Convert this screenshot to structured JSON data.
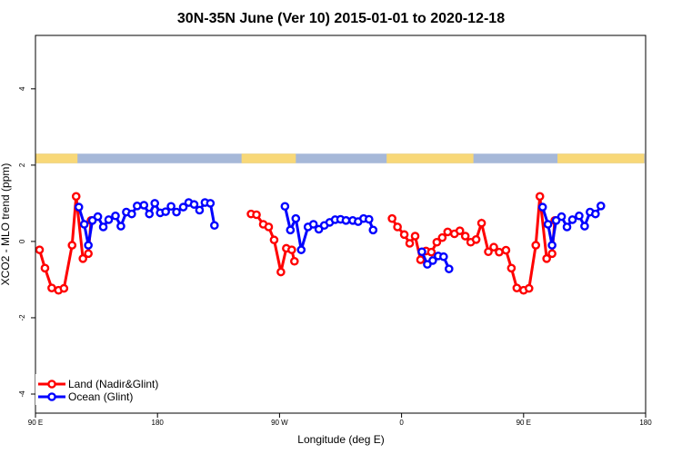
{
  "chart_data": {
    "type": "line",
    "title": "30N-35N June (Ver 10)   2015-01-01 to 2020-12-18",
    "xlabel": "Longitude (deg E)",
    "ylabel": "XCO2 - MLO trend (ppm)",
    "xlim": [
      90,
      540
    ],
    "ylim": [
      -4.5,
      5.4
    ],
    "x_ticks": [
      {
        "value": 90,
        "label": "90 E"
      },
      {
        "value": 180,
        "label": "180"
      },
      {
        "value": 270,
        "label": "90 W"
      },
      {
        "value": 360,
        "label": "0"
      },
      {
        "value": 450,
        "label": "90 E"
      },
      {
        "value": 540,
        "label": "180"
      }
    ],
    "y_ticks": [
      {
        "value": -4,
        "label": "-4"
      },
      {
        "value": -2,
        "label": "-2"
      },
      {
        "value": 0,
        "label": "0"
      },
      {
        "value": 2,
        "label": "2"
      },
      {
        "value": 4,
        "label": "4"
      }
    ],
    "legend_position": "bottom-left",
    "land_sea_strip": {
      "y_range": [
        2.05,
        2.3
      ],
      "ocean_color": "#a6b8d8",
      "land_color": "#f8d878",
      "land_segments": [
        [
          90,
          121
        ],
        [
          242,
          282
        ],
        [
          349,
          413
        ],
        [
          475,
          539
        ]
      ]
    },
    "series": [
      {
        "name": "Land (Nadir&Glint)",
        "color": "#ff0000",
        "points": [
          [
            93,
            -0.22
          ],
          [
            97,
            -0.7
          ],
          [
            102,
            -1.22
          ],
          [
            107,
            -1.28
          ],
          [
            111,
            -1.23
          ],
          [
            117,
            -0.1
          ],
          [
            120,
            1.18
          ],
          [
            125,
            -0.45
          ],
          [
            129,
            -0.32
          ],
          [
            131,
            0.55
          ],
          [
            249,
            0.72
          ],
          [
            253,
            0.7
          ],
          [
            258,
            0.45
          ],
          [
            262,
            0.38
          ],
          [
            266,
            0.04
          ],
          [
            271,
            -0.8
          ],
          [
            275,
            -0.18
          ],
          [
            279,
            -0.22
          ],
          [
            281,
            -0.52
          ],
          [
            353,
            0.6
          ],
          [
            357,
            0.38
          ],
          [
            362,
            0.18
          ],
          [
            366,
            -0.05
          ],
          [
            370,
            0.14
          ],
          [
            374,
            -0.48
          ],
          [
            378,
            -0.25
          ],
          [
            382,
            -0.28
          ],
          [
            386,
            -0.02
          ],
          [
            390,
            0.1
          ],
          [
            394,
            0.25
          ],
          [
            399,
            0.2
          ],
          [
            403,
            0.28
          ],
          [
            407,
            0.14
          ],
          [
            411,
            -0.02
          ],
          [
            415,
            0.05
          ],
          [
            419,
            0.48
          ],
          [
            424,
            -0.27
          ],
          [
            428,
            -0.15
          ],
          [
            432,
            -0.28
          ],
          [
            437,
            -0.23
          ],
          [
            441,
            -0.7
          ],
          [
            445,
            -1.22
          ],
          [
            450,
            -1.28
          ],
          [
            454,
            -1.23
          ],
          [
            459,
            -0.1
          ],
          [
            462,
            1.18
          ],
          [
            467,
            -0.45
          ],
          [
            471,
            -0.32
          ],
          [
            473,
            0.55
          ]
        ]
      },
      {
        "name": "Ocean (Glint)",
        "color": "#0000ff",
        "points": [
          [
            122,
            0.9
          ],
          [
            126,
            0.45
          ],
          [
            129,
            -0.1
          ],
          [
            132,
            0.55
          ],
          [
            136,
            0.65
          ],
          [
            140,
            0.38
          ],
          [
            144,
            0.57
          ],
          [
            149,
            0.67
          ],
          [
            153,
            0.4
          ],
          [
            157,
            0.77
          ],
          [
            161,
            0.72
          ],
          [
            165,
            0.93
          ],
          [
            170,
            0.95
          ],
          [
            174,
            0.72
          ],
          [
            178,
            1.0
          ],
          [
            182,
            0.75
          ],
          [
            186,
            0.78
          ],
          [
            190,
            0.92
          ],
          [
            194,
            0.77
          ],
          [
            199,
            0.9
          ],
          [
            203,
            1.02
          ],
          [
            207,
            0.97
          ],
          [
            211,
            0.82
          ],
          [
            215,
            1.02
          ],
          [
            219,
            1.0
          ],
          [
            222,
            0.42
          ],
          [
            274,
            0.92
          ],
          [
            278,
            0.3
          ],
          [
            282,
            0.6
          ],
          [
            286,
            -0.22
          ],
          [
            291,
            0.38
          ],
          [
            295,
            0.45
          ],
          [
            299,
            0.32
          ],
          [
            303,
            0.42
          ],
          [
            307,
            0.5
          ],
          [
            311,
            0.57
          ],
          [
            315,
            0.58
          ],
          [
            319,
            0.55
          ],
          [
            324,
            0.55
          ],
          [
            328,
            0.52
          ],
          [
            332,
            0.6
          ],
          [
            336,
            0.58
          ],
          [
            339,
            0.3
          ],
          [
            375,
            -0.27
          ],
          [
            379,
            -0.6
          ],
          [
            383,
            -0.5
          ],
          [
            387,
            -0.38
          ],
          [
            391,
            -0.4
          ],
          [
            395,
            -0.72
          ],
          [
            464,
            0.9
          ],
          [
            468,
            0.45
          ],
          [
            471,
            -0.1
          ],
          [
            474,
            0.55
          ],
          [
            478,
            0.65
          ],
          [
            482,
            0.38
          ],
          [
            486,
            0.57
          ],
          [
            491,
            0.67
          ],
          [
            495,
            0.4
          ],
          [
            499,
            0.77
          ],
          [
            503,
            0.72
          ],
          [
            507,
            0.93
          ]
        ]
      }
    ]
  }
}
